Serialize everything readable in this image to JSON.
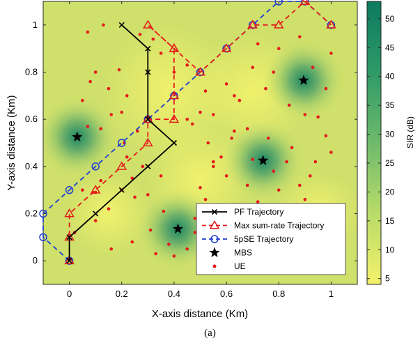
{
  "caption": "(a)",
  "colorbar": {
    "label": "SIR (dB)",
    "range": [
      4,
      53
    ],
    "ticks": [
      5,
      10,
      15,
      20,
      25,
      30,
      35,
      40,
      45,
      50
    ],
    "low_color": "#f2f06a",
    "high_color": "#0e7f62"
  },
  "chart_data": {
    "type": "scatter",
    "title": "",
    "xlabel": "X-axis distance (Km)",
    "ylabel": "Y-axis distance (Km)",
    "xlim": [
      -0.1,
      1.1
    ],
    "ylim": [
      -0.1,
      1.1
    ],
    "xticks": [
      0,
      0.2,
      0.4,
      0.6,
      0.8,
      1
    ],
    "yticks": [
      0,
      0.2,
      0.4,
      0.6,
      0.8,
      1
    ],
    "grid": false,
    "legend_position": "bottom-right",
    "series": [
      {
        "name": "PF Trajectory",
        "color": "#000000",
        "dash": "solid",
        "marker": "x",
        "x": [
          0,
          0,
          0.1,
          0.2,
          0.3,
          0.4,
          0.3,
          0.3,
          0.3,
          0.2
        ],
        "y": [
          0,
          0.1,
          0.2,
          0.3,
          0.4,
          0.5,
          0.6,
          0.8,
          0.9,
          1.0
        ]
      },
      {
        "name": "Max sum-rate Trajectory",
        "color": "#e41a1c",
        "dash": "dashed",
        "marker": "triangle",
        "x": [
          0,
          0,
          0,
          0.1,
          0.2,
          0.3,
          0.3,
          0.4,
          0.4,
          0.4,
          0.3,
          0.4,
          0.5,
          0.6,
          0.7,
          0.8,
          0.9,
          1.0
        ],
        "y": [
          0,
          0.1,
          0.2,
          0.3,
          0.4,
          0.5,
          0.6,
          0.6,
          0.7,
          0.9,
          1.0,
          0.9,
          0.8,
          0.9,
          1.0,
          1.0,
          1.1,
          1.0
        ]
      },
      {
        "name": "5pSE Trajectory",
        "color": "#1f3fcf",
        "dash": "dashed",
        "marker": "circle",
        "x": [
          0,
          -0.1,
          -0.1,
          0,
          0.1,
          0.2,
          0.3,
          0.4,
          0.5,
          0.6,
          0.7,
          0.8,
          0.9,
          1.0
        ],
        "y": [
          0,
          0.1,
          0.2,
          0.3,
          0.4,
          0.5,
          0.6,
          0.7,
          0.8,
          0.9,
          1.0,
          1.1,
          1.1,
          1.0
        ]
      },
      {
        "name": "MBS",
        "color": "#000000",
        "marker": "star",
        "x": [
          0.03,
          0.415,
          0.74,
          0.895
        ],
        "y": [
          0.525,
          0.135,
          0.425,
          0.765
        ]
      },
      {
        "name": "UE",
        "color": "#e41a1c",
        "marker": "dot",
        "x": [
          0.07,
          0.13,
          0.08,
          0.2,
          0.22,
          0.27,
          0.32,
          0.35,
          0.07,
          0.12,
          0.05,
          0.15,
          0.16,
          0.1,
          0.19,
          0.12,
          0.21,
          0.26,
          0.4,
          0.45,
          0.52,
          0.55,
          0.6,
          0.63,
          0.65,
          0.58,
          0.7,
          0.72,
          0.78,
          0.8,
          0.75,
          0.84,
          0.9,
          0.95,
          0.98,
          0.93,
          1.0,
          0.88,
          0.85,
          0.62,
          0.53,
          0.47,
          0.55,
          0.6,
          0.63,
          0.68,
          0.7,
          0.76,
          0.5,
          0.52,
          0.48,
          0.36,
          0.3,
          0.31,
          0.35,
          0.28,
          0.22,
          0.24,
          0.2,
          0.25,
          0.1,
          0.15,
          0.98,
          1.0,
          0.94,
          0.92,
          0.88,
          0.9,
          0.86,
          0.8,
          0.78,
          0.72,
          0.65,
          0.62,
          0.58,
          0.55,
          0.48,
          0.45,
          0.4,
          0.38,
          0.33,
          0.24,
          0.05,
          0.09,
          0.1,
          0.02,
          0.16,
          0.45,
          0.5,
          0.55,
          0.68,
          0.83
        ],
        "y": [
          0.97,
          1.0,
          0.76,
          0.63,
          0.7,
          0.96,
          0.94,
          0.88,
          0.57,
          0.56,
          0.68,
          0.73,
          0.62,
          0.8,
          0.81,
          0.34,
          0.5,
          0.55,
          0.8,
          0.83,
          0.72,
          0.62,
          0.75,
          0.7,
          0.68,
          0.44,
          0.82,
          0.92,
          0.8,
          0.9,
          0.73,
          0.66,
          0.62,
          0.61,
          0.73,
          0.82,
          0.88,
          0.95,
          0.48,
          0.52,
          0.5,
          0.58,
          0.4,
          0.36,
          0.55,
          0.32,
          0.43,
          0.52,
          0.31,
          0.26,
          0.18,
          0.21,
          0.28,
          0.13,
          0.36,
          0.4,
          0.44,
          0.35,
          0.3,
          0.27,
          0.29,
          0.22,
          0.53,
          0.46,
          0.42,
          0.36,
          0.32,
          0.26,
          0.16,
          0.3,
          0.38,
          0.25,
          0.1,
          0.07,
          0.15,
          0.22,
          0.12,
          0.05,
          0.02,
          0.07,
          0.03,
          0.08,
          0.3,
          0.29,
          0.17,
          0.12,
          0.05,
          0.6,
          0.63,
          0.42,
          0.56,
          0.42
        ]
      }
    ]
  }
}
